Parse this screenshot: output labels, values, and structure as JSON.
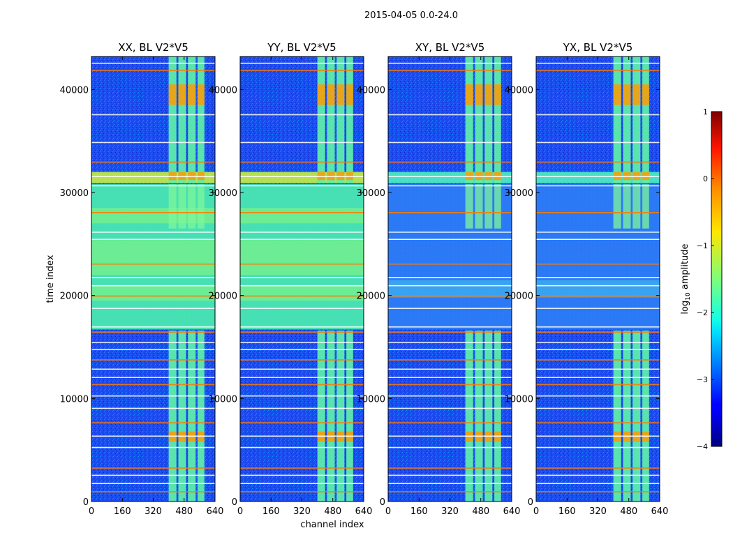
{
  "chart_data": {
    "type": "heatmap",
    "suptitle": "2015-04-05 0.0-24.0",
    "xlabel": "channel index",
    "ylabel": "time index",
    "xlim": [
      0,
      640
    ],
    "ylim": [
      0,
      43200
    ],
    "xticks": [
      "0",
      "160",
      "320",
      "480",
      "640"
    ],
    "yticks": [
      "0",
      "10000",
      "20000",
      "30000",
      "40000"
    ],
    "panels": [
      {
        "title": "XX, BL V2*V5",
        "pol": "XX",
        "background_level": "high"
      },
      {
        "title": "YY, BL V2*V5",
        "pol": "YY",
        "background_level": "high"
      },
      {
        "title": "XY, BL V2*V5",
        "pol": "XY",
        "background_level": "low"
      },
      {
        "title": "YX, BL V2*V5",
        "pol": "YX",
        "background_level": "low"
      }
    ],
    "rfi_channel_bands": [
      [
        400,
        440
      ],
      [
        450,
        490
      ],
      [
        500,
        540
      ],
      [
        550,
        585
      ]
    ],
    "flagged_time_rows": [
      1000,
      1800,
      2600,
      3300,
      5300,
      6400,
      7700,
      9100,
      10300,
      11400,
      12100,
      12900,
      13800,
      14800,
      15500,
      16500,
      17000,
      18800,
      20000,
      21000,
      21800,
      23100,
      25500,
      26200,
      28100,
      30700,
      31600,
      33000,
      34900,
      37600,
      41900,
      42600
    ],
    "colorbar": {
      "label": "log10 amplitude",
      "min": -4,
      "max": 1,
      "ticks": [
        "1",
        "0",
        "−1",
        "−2",
        "−3",
        "−4"
      ],
      "colormap": "jet"
    }
  }
}
